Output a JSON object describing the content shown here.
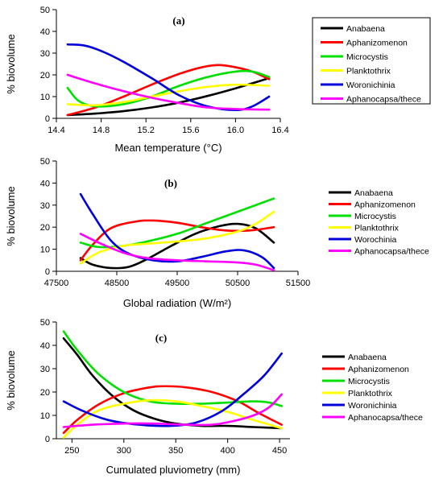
{
  "chart_data": [
    {
      "type": "line",
      "panel_tag": "(a)",
      "xlabel": "Mean temperature (°C)",
      "ylabel": "% biovolume",
      "xlim": [
        14.4,
        16.4
      ],
      "ylim": [
        0,
        50
      ],
      "xticks": [
        "14.4",
        "14.8",
        "15.2",
        "15.6",
        "16.0",
        "16.4"
      ],
      "xtick_values": [
        14.4,
        14.8,
        15.2,
        15.6,
        16.0,
        16.4
      ],
      "yticks": [
        "0",
        "10",
        "20",
        "30",
        "40",
        "50"
      ],
      "ytick_values": [
        0,
        10,
        20,
        30,
        40,
        50
      ],
      "legend_placement": "right",
      "legend_border": true,
      "series": [
        {
          "name": "Anabaena",
          "color": "#000000",
          "points": [
            [
              14.5,
              1.5
            ],
            [
              14.75,
              2.2
            ],
            [
              15.0,
              3.3
            ],
            [
              15.25,
              5.0
            ],
            [
              15.5,
              7.3
            ],
            [
              15.75,
              10.3
            ],
            [
              16.0,
              13.8
            ],
            [
              16.3,
              18.5
            ]
          ]
        },
        {
          "name": "Aphanizomenon",
          "color": "#ff0000",
          "points": [
            [
              14.5,
              1.5
            ],
            [
              14.75,
              5.0
            ],
            [
              15.0,
              10.0
            ],
            [
              15.25,
              15.5
            ],
            [
              15.5,
              20.5
            ],
            [
              15.7,
              23.5
            ],
            [
              15.85,
              24.5
            ],
            [
              16.0,
              23.5
            ],
            [
              16.15,
              21.5
            ],
            [
              16.3,
              18.0
            ]
          ]
        },
        {
          "name": "Microcystis",
          "color": "#00e000",
          "points": [
            [
              14.5,
              14.0
            ],
            [
              14.6,
              8.0
            ],
            [
              14.75,
              5.5
            ],
            [
              15.0,
              6.5
            ],
            [
              15.25,
              10.0
            ],
            [
              15.5,
              15.0
            ],
            [
              15.75,
              19.0
            ],
            [
              16.0,
              21.5
            ],
            [
              16.15,
              21.5
            ],
            [
              16.3,
              19.0
            ]
          ]
        },
        {
          "name": "Planktothrix",
          "color": "#ffff00",
          "points": [
            [
              14.5,
              6.5
            ],
            [
              14.75,
              6.0
            ],
            [
              15.0,
              7.5
            ],
            [
              15.25,
              10.0
            ],
            [
              15.5,
              12.5
            ],
            [
              15.75,
              14.5
            ],
            [
              16.0,
              15.5
            ],
            [
              16.3,
              15.0
            ]
          ]
        },
        {
          "name": "Woronichinia",
          "color": "#0000dd",
          "points": [
            [
              14.5,
              34.0
            ],
            [
              14.65,
              33.5
            ],
            [
              14.8,
              31.0
            ],
            [
              15.0,
              26.0
            ],
            [
              15.25,
              18.5
            ],
            [
              15.5,
              10.5
            ],
            [
              15.75,
              5.5
            ],
            [
              16.0,
              3.8
            ],
            [
              16.15,
              5.5
            ],
            [
              16.3,
              10.0
            ]
          ]
        },
        {
          "name": "Aphanocapsa/thece",
          "color": "#ff00ff",
          "points": [
            [
              14.5,
              20.0
            ],
            [
              14.75,
              16.0
            ],
            [
              15.0,
              12.5
            ],
            [
              15.25,
              9.5
            ],
            [
              15.5,
              7.0
            ],
            [
              15.75,
              5.0
            ],
            [
              16.0,
              4.3
            ],
            [
              16.3,
              4.0
            ]
          ]
        }
      ]
    },
    {
      "type": "line",
      "panel_tag": "(b)",
      "xlabel": "Global radiation (W/m²)",
      "ylabel": "% biovolume",
      "xlim": [
        47500,
        51500
      ],
      "ylim": [
        0,
        50
      ],
      "xticks": [
        "47500",
        "48500",
        "49500",
        "50500",
        "51500"
      ],
      "xtick_values": [
        47500,
        48500,
        49500,
        50500,
        51500
      ],
      "yticks": [
        "0",
        "10",
        "20",
        "30",
        "40",
        "50"
      ],
      "ytick_values": [
        0,
        10,
        20,
        30,
        40,
        50
      ],
      "legend_placement": "right",
      "legend_border": false,
      "series": [
        {
          "name": "Anabaena",
          "color": "#000000",
          "points": [
            [
              47900,
              6.0
            ],
            [
              48100,
              3.0
            ],
            [
              48400,
              1.5
            ],
            [
              48700,
              2.0
            ],
            [
              49000,
              5.5
            ],
            [
              49400,
              11.5
            ],
            [
              49800,
              17.0
            ],
            [
              50200,
              20.5
            ],
            [
              50500,
              21.5
            ],
            [
              50800,
              19.5
            ],
            [
              51100,
              13.0
            ]
          ]
        },
        {
          "name": "Aphanizomenon",
          "color": "#ff0000",
          "points": [
            [
              47900,
              5.0
            ],
            [
              48100,
              12.0
            ],
            [
              48400,
              19.5
            ],
            [
              48800,
              22.5
            ],
            [
              49100,
              23.0
            ],
            [
              49500,
              22.0
            ],
            [
              49900,
              20.0
            ],
            [
              50300,
              18.5
            ],
            [
              50700,
              18.5
            ],
            [
              51100,
              20.0
            ]
          ]
        },
        {
          "name": "Microcystis",
          "color": "#00e000",
          "points": [
            [
              47900,
              13.0
            ],
            [
              48200,
              11.0
            ],
            [
              48600,
              11.5
            ],
            [
              49000,
              13.5
            ],
            [
              49500,
              17.0
            ],
            [
              50000,
              22.0
            ],
            [
              50500,
              27.0
            ],
            [
              51100,
              33.0
            ]
          ]
        },
        {
          "name": "Planktothrix",
          "color": "#ffff00",
          "points": [
            [
              47900,
              3.5
            ],
            [
              48200,
              8.5
            ],
            [
              48600,
              11.5
            ],
            [
              49000,
              12.5
            ],
            [
              49500,
              13.5
            ],
            [
              50000,
              15.0
            ],
            [
              50500,
              18.0
            ],
            [
              50800,
              21.5
            ],
            [
              51100,
              27.0
            ]
          ]
        },
        {
          "name": "Worochinia",
          "color": "#0000dd",
          "points": [
            [
              47900,
              35.0
            ],
            [
              48100,
              26.0
            ],
            [
              48400,
              14.0
            ],
            [
              48700,
              8.0
            ],
            [
              49100,
              5.0
            ],
            [
              49500,
              4.5
            ],
            [
              49900,
              6.5
            ],
            [
              50300,
              9.0
            ],
            [
              50600,
              9.5
            ],
            [
              50900,
              6.5
            ],
            [
              51100,
              1.5
            ]
          ]
        },
        {
          "name": "Aphanocapsa/thece",
          "color": "#ff00ff",
          "points": [
            [
              47900,
              17.0
            ],
            [
              48200,
              13.0
            ],
            [
              48600,
              8.5
            ],
            [
              49000,
              6.0
            ],
            [
              49500,
              5.0
            ],
            [
              50000,
              4.5
            ],
            [
              50500,
              4.0
            ],
            [
              50800,
              3.0
            ],
            [
              51100,
              0.5
            ]
          ]
        }
      ]
    },
    {
      "type": "line",
      "panel_tag": "(c)",
      "xlabel": "Cumulated pluviometry (mm)",
      "ylabel": "% biovolume",
      "xlim": [
        235,
        460
      ],
      "ylim": [
        0,
        50
      ],
      "xticks": [
        "250",
        "300",
        "350",
        "400",
        "450"
      ],
      "xtick_values": [
        250,
        300,
        350,
        400,
        450
      ],
      "yticks": [
        "0",
        "10",
        "20",
        "30",
        "40",
        "50"
      ],
      "ytick_values": [
        0,
        10,
        20,
        30,
        40,
        50
      ],
      "legend_placement": "right",
      "legend_border": false,
      "series": [
        {
          "name": "Anabaena",
          "color": "#000000",
          "points": [
            [
              242,
              43.0
            ],
            [
              255,
              36.0
            ],
            [
              270,
              27.0
            ],
            [
              290,
              18.0
            ],
            [
              310,
              12.0
            ],
            [
              330,
              8.5
            ],
            [
              350,
              6.5
            ],
            [
              375,
              5.5
            ],
            [
              400,
              5.5
            ],
            [
              425,
              5.0
            ],
            [
              452,
              4.5
            ]
          ]
        },
        {
          "name": "Aphanizomenon",
          "color": "#ff0000",
          "points": [
            [
              242,
              2.5
            ],
            [
              255,
              8.0
            ],
            [
              275,
              14.5
            ],
            [
              300,
              19.5
            ],
            [
              325,
              22.0
            ],
            [
              340,
              22.5
            ],
            [
              360,
              22.0
            ],
            [
              385,
              20.0
            ],
            [
              410,
              16.0
            ],
            [
              430,
              11.0
            ],
            [
              452,
              6.0
            ]
          ]
        },
        {
          "name": "Microcystis",
          "color": "#00e000",
          "points": [
            [
              242,
              46.0
            ],
            [
              255,
              38.0
            ],
            [
              275,
              28.0
            ],
            [
              300,
              20.0
            ],
            [
              325,
              16.0
            ],
            [
              350,
              15.0
            ],
            [
              375,
              15.0
            ],
            [
              400,
              15.5
            ],
            [
              425,
              16.0
            ],
            [
              440,
              15.5
            ],
            [
              452,
              14.0
            ]
          ]
        },
        {
          "name": "Planktothrix",
          "color": "#ffff00",
          "points": [
            [
              242,
              0.5
            ],
            [
              255,
              6.0
            ],
            [
              275,
              12.0
            ],
            [
              300,
              15.0
            ],
            [
              325,
              16.5
            ],
            [
              350,
              16.0
            ],
            [
              375,
              14.0
            ],
            [
              400,
              11.5
            ],
            [
              425,
              8.0
            ],
            [
              452,
              4.5
            ]
          ]
        },
        {
          "name": "Woronichinia",
          "color": "#0000dd",
          "points": [
            [
              242,
              16.0
            ],
            [
              260,
              12.0
            ],
            [
              285,
              8.0
            ],
            [
              315,
              6.0
            ],
            [
              345,
              5.5
            ],
            [
              370,
              7.0
            ],
            [
              395,
              12.0
            ],
            [
              415,
              19.0
            ],
            [
              435,
              27.0
            ],
            [
              452,
              36.5
            ]
          ]
        },
        {
          "name": "Aphanocapsa/thece",
          "color": "#ff00ff",
          "points": [
            [
              242,
              5.0
            ],
            [
              270,
              6.0
            ],
            [
              300,
              6.5
            ],
            [
              330,
              6.5
            ],
            [
              360,
              6.0
            ],
            [
              385,
              6.0
            ],
            [
              405,
              7.5
            ],
            [
              425,
              10.0
            ],
            [
              440,
              13.5
            ],
            [
              452,
              19.0
            ]
          ]
        }
      ]
    }
  ]
}
